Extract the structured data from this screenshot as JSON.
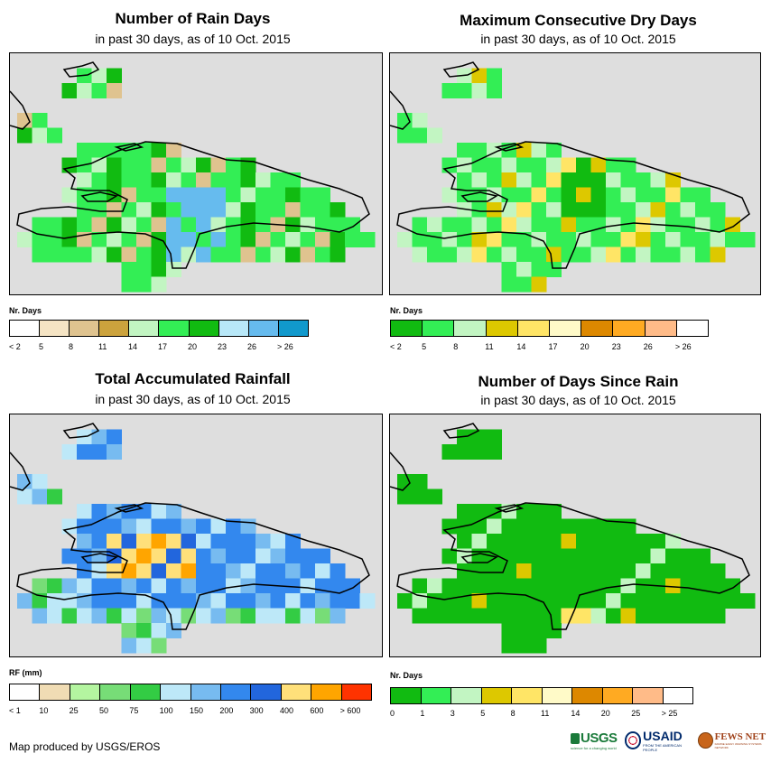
{
  "panels": [
    {
      "id": "rain-days",
      "title": "Number of Rain Days",
      "subtitle": "in past 30 days, as of 10 Oct. 2015",
      "legend_title": "Nr. Days",
      "legend_colors": [
        "#ffffff",
        "#f5e4c4",
        "#dfc38f",
        "#cca33d",
        "#c2f5c2",
        "#33ee55",
        "#11bb11",
        "#b8e8f8",
        "#66bbee",
        "#1199cc"
      ],
      "legend_labels": [
        "< 2",
        "5",
        "8",
        "11",
        "14",
        "17",
        "20",
        "23",
        "26",
        "> 26"
      ]
    },
    {
      "id": "max-dry-days",
      "title": "Maximum Consecutive Dry Days",
      "subtitle": "in past 30 days, as of 10 Oct. 2015",
      "legend_title": "Nr. Days",
      "legend_colors": [
        "#11bb11",
        "#33ee55",
        "#c2f5c2",
        "#ddc800",
        "#ffe566",
        "#fffac8",
        "#dd8800",
        "#ffaa22",
        "#ffbb88",
        "#ffffff"
      ],
      "legend_labels": [
        "< 2",
        "5",
        "8",
        "11",
        "14",
        "17",
        "20",
        "23",
        "26",
        "> 26"
      ]
    },
    {
      "id": "total-rainfall",
      "title": "Total Accumulated Rainfall",
      "subtitle": "in past 30 days, as of 10 Oct. 2015",
      "legend_title": "RF (mm)",
      "legend_colors": [
        "#ffffff",
        "#f0dcb4",
        "#b4f5a0",
        "#77dd77",
        "#33cc44",
        "#bde8f8",
        "#77bbf0",
        "#3388ee",
        "#2266dd",
        "#ffe07a",
        "#ffa500",
        "#ff3300"
      ],
      "legend_labels": [
        "< 1",
        "10",
        "25",
        "50",
        "75",
        "100",
        "150",
        "200",
        "300",
        "400",
        "600",
        "> 600"
      ]
    },
    {
      "id": "days-since-rain",
      "title": "Number of Days Since Rain",
      "subtitle": "in past 30 days, as of 10 Oct. 2015",
      "legend_title": "Nr. Days",
      "legend_colors": [
        "#11bb11",
        "#33ee55",
        "#c2f5c2",
        "#ddc800",
        "#ffe566",
        "#fffac8",
        "#dd8800",
        "#ffaa22",
        "#ffbb88",
        "#ffffff"
      ],
      "legend_labels": [
        "0",
        "1",
        "3",
        "5",
        "8",
        "11",
        "14",
        "20",
        "25",
        "> 25"
      ]
    }
  ],
  "credit": "Map produced by USGS/EROS",
  "logos": {
    "usgs": "USGS",
    "usgs_tagline": "science for a changing world",
    "usaid": "USAID",
    "usaid_tagline": "FROM THE AMERICAN PEOPLE",
    "fewsnet": "FEWS NET",
    "fewsnet_tagline": "FAMINE EARLY WARNING SYSTEMS NETWORK"
  },
  "colors": {
    "map_background": "#dedede",
    "outline": "#000000"
  }
}
